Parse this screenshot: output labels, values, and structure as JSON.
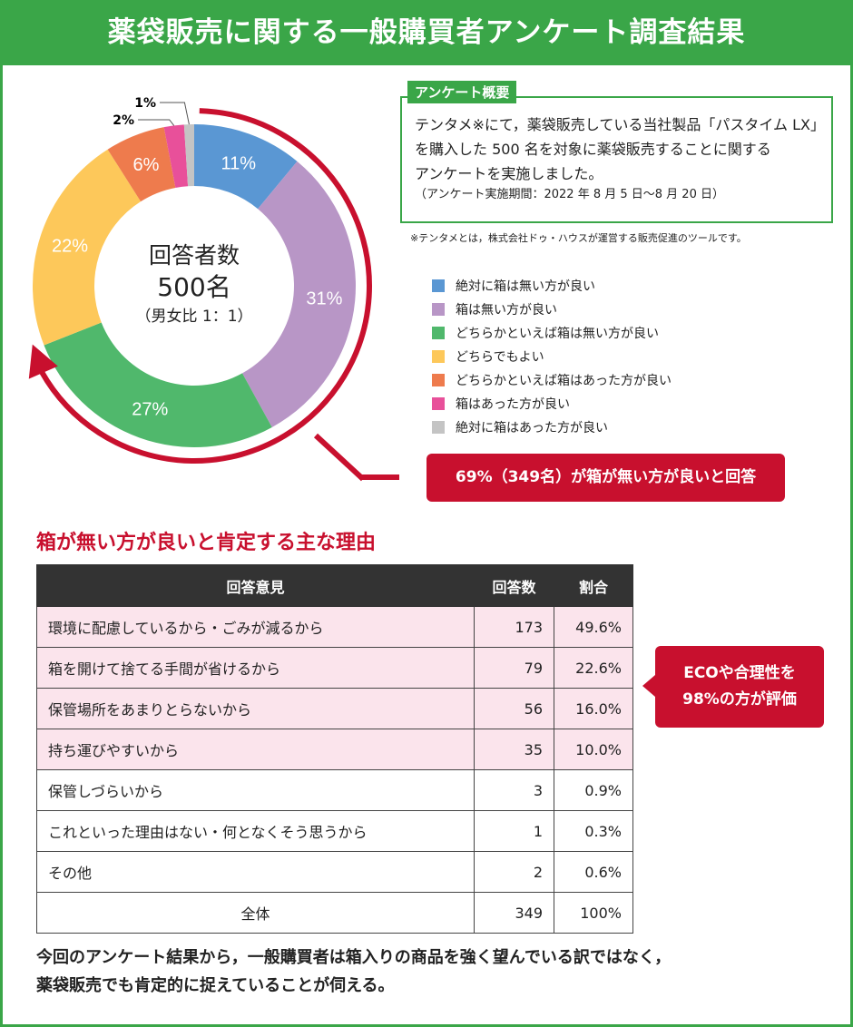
{
  "title": "薬袋販売に関する一般購買者アンケート調査結果",
  "chart_data": {
    "type": "pie",
    "center_label": {
      "line1": "回答者数",
      "line2": "500名",
      "line3": "（男女比 1：1）"
    },
    "categories": [
      "絶対に箱は無い方が良い",
      "箱は無い方が良い",
      "どちらかといえば箱は無い方が良い",
      "どちらでもよい",
      "どちらかといえば箱はあった方が良い",
      "箱はあった方が良い",
      "絶対に箱はあった方が良い"
    ],
    "values": [
      11,
      31,
      27,
      22,
      6,
      2,
      1
    ],
    "labels": [
      "11%",
      "31%",
      "27%",
      "22%",
      "6%",
      "2%",
      "1%"
    ],
    "colors": [
      "#5a97d3",
      "#b896c6",
      "#50b86c",
      "#fdc85a",
      "#ee7b4d",
      "#e8509a",
      "#c4c4c4"
    ],
    "legend_position": "right"
  },
  "overview": {
    "tag": "アンケート概要",
    "text1": "テンタメ※にて，薬袋販売している当社製品「パスタイム LX」",
    "text2": "を購入した 500 名を対象に薬袋販売することに関する",
    "text3": "アンケートを実施しました。",
    "period": "（アンケート実施期間：2022 年 8 月 5 日〜8 月 20 日）",
    "note": "※テンタメとは，株式会社ドゥ・ハウスが運営する販売促進のツールです。"
  },
  "callout": "69%（349名）が箱が無い方が良いと回答",
  "reasons": {
    "heading": "箱が無い方が良いと肯定する主な理由",
    "headers": [
      "回答意見",
      "回答数",
      "割合"
    ],
    "rows": [
      [
        "環境に配慮しているから・ごみが減るから",
        "173",
        "49.6%"
      ],
      [
        "箱を開けて捨てる手間が省けるから",
        "79",
        "22.6%"
      ],
      [
        "保管場所をあまりとらないから",
        "56",
        "16.0%"
      ],
      [
        "持ち運びやすいから",
        "35",
        "10.0%"
      ],
      [
        "保管しづらいから",
        "3",
        "0.9%"
      ],
      [
        "これといった理由はない・何となくそう思うから",
        "1",
        "0.3%"
      ],
      [
        "その他",
        "2",
        "0.6%"
      ]
    ],
    "total": [
      "全体",
      "349",
      "100%"
    ],
    "eco_line1": "ECOや合理性を",
    "eco_line2": "98%の方が評価"
  },
  "conclusion": {
    "line1": "今回のアンケート結果から，一般購買者は箱入りの商品を強く望んでいる訳ではなく，",
    "line2": "薬袋販売でも肯定的に捉えていることが伺える。"
  }
}
